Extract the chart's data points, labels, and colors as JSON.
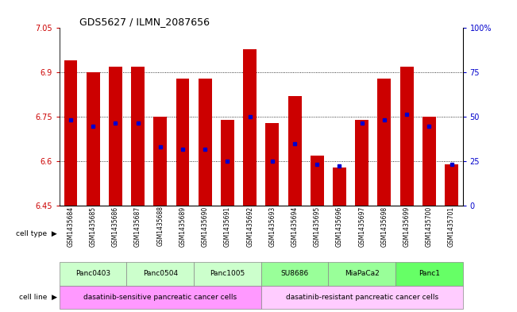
{
  "title": "GDS5627 / ILMN_2087656",
  "samples": [
    "GSM1435684",
    "GSM1435685",
    "GSM1435686",
    "GSM1435687",
    "GSM1435688",
    "GSM1435689",
    "GSM1435690",
    "GSM1435691",
    "GSM1435692",
    "GSM1435693",
    "GSM1435694",
    "GSM1435695",
    "GSM1435696",
    "GSM1435697",
    "GSM1435698",
    "GSM1435699",
    "GSM1435700",
    "GSM1435701"
  ],
  "bar_values": [
    6.94,
    6.9,
    6.92,
    6.92,
    6.75,
    6.88,
    6.88,
    6.74,
    6.98,
    6.73,
    6.82,
    6.62,
    6.58,
    6.74,
    6.88,
    6.92,
    6.75,
    6.59
  ],
  "percentile_values": [
    6.74,
    6.72,
    6.73,
    6.73,
    6.65,
    6.64,
    6.64,
    6.6,
    6.75,
    6.6,
    6.66,
    6.59,
    6.585,
    6.73,
    6.74,
    6.76,
    6.72,
    6.59
  ],
  "bar_bottom": 6.45,
  "y_min": 6.45,
  "y_max": 7.05,
  "y_ticks": [
    6.45,
    6.6,
    6.75,
    6.9,
    7.05
  ],
  "y_tick_labels": [
    "6.45",
    "6.6",
    "6.75",
    "6.9",
    "7.05"
  ],
  "right_y_ticks": [
    6.45,
    6.6,
    6.75,
    6.9,
    7.05
  ],
  "right_y_labels": [
    "0",
    "25",
    "50",
    "75",
    "100%"
  ],
  "cell_lines": [
    {
      "name": "Panc0403",
      "start": 0,
      "end": 2,
      "color": "#ccffcc"
    },
    {
      "name": "Panc0504",
      "start": 3,
      "end": 5,
      "color": "#ccffcc"
    },
    {
      "name": "Panc1005",
      "start": 6,
      "end": 8,
      "color": "#ccffcc"
    },
    {
      "name": "SU8686",
      "start": 9,
      "end": 11,
      "color": "#99ff99"
    },
    {
      "name": "MiaPaCa2",
      "start": 12,
      "end": 14,
      "color": "#99ff99"
    },
    {
      "name": "Panc1",
      "start": 15,
      "end": 17,
      "color": "#66ff66"
    }
  ],
  "cell_types": [
    {
      "name": "dasatinib-sensitive pancreatic cancer cells",
      "start": 0,
      "end": 8,
      "color": "#ff99ff"
    },
    {
      "name": "dasatinib-resistant pancreatic cancer cells",
      "start": 9,
      "end": 17,
      "color": "#ffccff"
    }
  ],
  "bar_color": "#cc0000",
  "percentile_color": "#0000cc",
  "bg_color": "#ffffff",
  "label_color_left": "#cc0000",
  "label_color_right": "#0000cc",
  "grid_color": "black",
  "sample_tick_color": "#888888"
}
